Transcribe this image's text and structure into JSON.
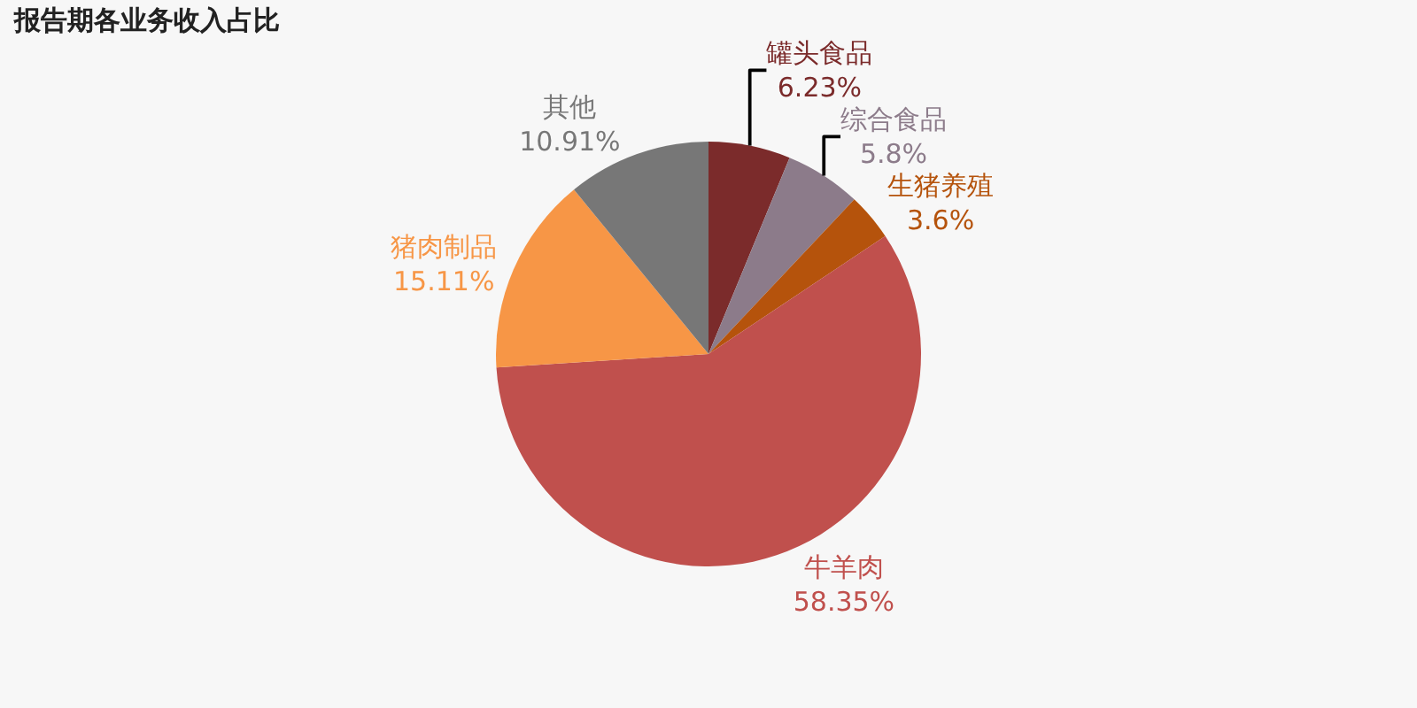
{
  "chart_data": {
    "type": "pie",
    "title": "报告期各业务收入占比",
    "categories": [
      "罐头食品",
      "综合食品",
      "生猪养殖",
      "牛羊肉",
      "猪肉制品",
      "其他"
    ],
    "values": [
      6.23,
      5.8,
      3.6,
      58.35,
      15.11,
      10.91
    ],
    "value_labels": [
      "6.23%",
      "5.8%",
      "3.6%",
      "58.35%",
      "15.11%",
      "10.91%"
    ],
    "colors": [
      "#7b2b2b",
      "#8c7b8a",
      "#b5530c",
      "#c0504d",
      "#f79646",
      "#777777"
    ],
    "legend": false
  }
}
